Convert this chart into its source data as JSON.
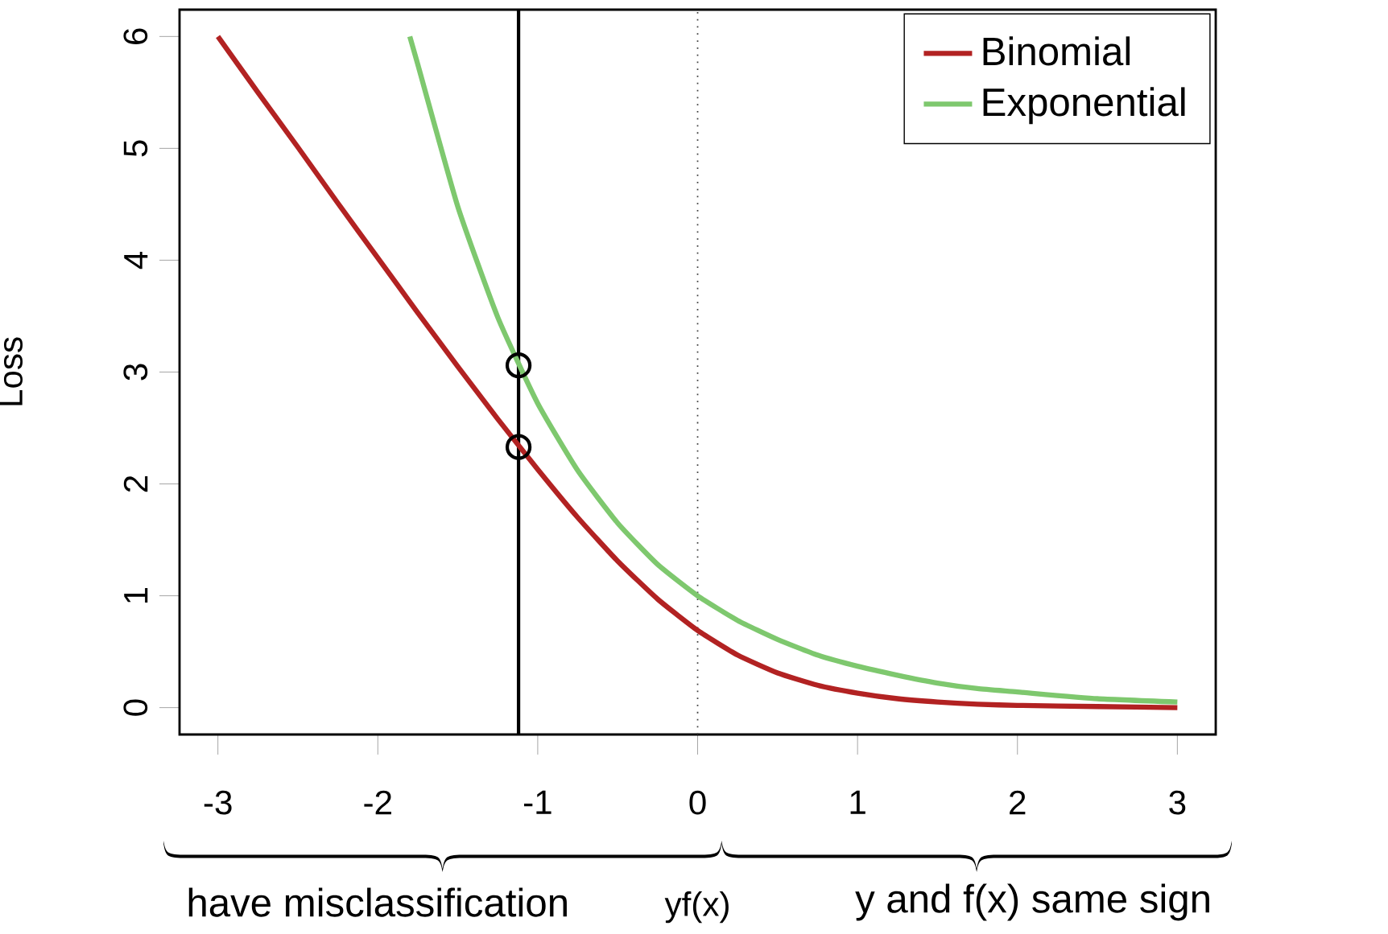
{
  "chart_data": {
    "type": "line",
    "xlabel": "yf(x)",
    "ylabel": "Loss",
    "xlim": [
      -3.24,
      3.24
    ],
    "ylim": [
      -0.24,
      6.24
    ],
    "xticks": [
      -3,
      -2,
      -1,
      0,
      1,
      2,
      3
    ],
    "yticks": [
      0,
      1,
      2,
      3,
      4,
      5,
      6
    ],
    "series": [
      {
        "name": "Binomial",
        "color": "#b22222",
        "x": [
          -3,
          -2.75,
          -2.5,
          -2.25,
          -2,
          -1.75,
          -1.5,
          -1.25,
          -1,
          -0.75,
          -0.5,
          -0.25,
          0,
          0.25,
          0.5,
          0.75,
          1,
          1.25,
          1.5,
          1.75,
          2,
          2.5,
          3
        ],
        "values": [
          6.0,
          5.5,
          5.01,
          4.51,
          4.02,
          3.53,
          3.05,
          2.58,
          2.13,
          1.7,
          1.31,
          0.97,
          0.69,
          0.47,
          0.31,
          0.2,
          0.13,
          0.08,
          0.05,
          0.03,
          0.02,
          0.01,
          0.0
        ]
      },
      {
        "name": "Exponential",
        "color": "#7ec86e",
        "x": [
          -1.8,
          -1.75,
          -1.5,
          -1.25,
          -1,
          -0.75,
          -0.5,
          -0.25,
          0,
          0.25,
          0.5,
          0.75,
          1,
          1.25,
          1.5,
          1.75,
          2,
          2.5,
          3
        ],
        "values": [
          6.0,
          5.75,
          4.48,
          3.49,
          2.72,
          2.12,
          1.65,
          1.28,
          1.0,
          0.78,
          0.61,
          0.47,
          0.37,
          0.29,
          0.22,
          0.17,
          0.14,
          0.08,
          0.05
        ]
      },
      {
        "type": "scatter",
        "marker": "circle",
        "color": "#000000",
        "x": [
          -1.12,
          -1.12
        ],
        "values": [
          3.06,
          2.33
        ]
      }
    ],
    "ref_lines": [
      {
        "axis": "x",
        "value": 0,
        "color": "#404040",
        "line_style": "dotted"
      },
      {
        "axis": "x",
        "value": -1.12,
        "color": "#000000",
        "line_style": "solid"
      }
    ],
    "annotations": [
      "have misclassification",
      "y and f(x) same sign"
    ],
    "legend": "top right",
    "line_style": "solid",
    "marker": "none",
    "grid": false
  }
}
